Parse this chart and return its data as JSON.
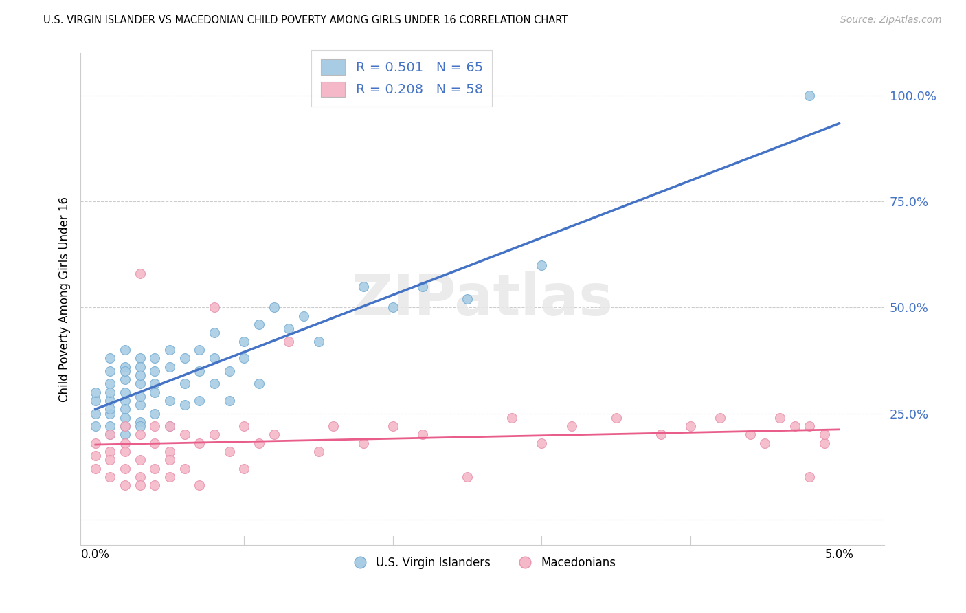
{
  "title": "U.S. VIRGIN ISLANDER VS MACEDONIAN CHILD POVERTY AMONG GIRLS UNDER 16 CORRELATION CHART",
  "source": "Source: ZipAtlas.com",
  "ylabel": "Child Poverty Among Girls Under 16",
  "blue_R": 0.501,
  "blue_N": 65,
  "pink_R": 0.208,
  "pink_N": 58,
  "blue_color": "#a8cce4",
  "pink_color": "#f4b8c8",
  "blue_line_color": "#4472c4",
  "pink_line_color": "#e85d8a",
  "blue_edge_color": "#7aafd4",
  "pink_edge_color": "#e895b0",
  "ytick_color": "#4472c4",
  "watermark": "ZIPatlas",
  "blue_scatter_x": [
    0.0,
    0.0,
    0.0,
    0.0,
    0.001,
    0.001,
    0.001,
    0.001,
    0.001,
    0.001,
    0.001,
    0.001,
    0.001,
    0.002,
    0.002,
    0.002,
    0.002,
    0.002,
    0.002,
    0.002,
    0.002,
    0.002,
    0.002,
    0.003,
    0.003,
    0.003,
    0.003,
    0.003,
    0.003,
    0.003,
    0.003,
    0.004,
    0.004,
    0.004,
    0.004,
    0.004,
    0.005,
    0.005,
    0.005,
    0.005,
    0.006,
    0.006,
    0.006,
    0.007,
    0.007,
    0.007,
    0.008,
    0.008,
    0.008,
    0.009,
    0.009,
    0.01,
    0.01,
    0.011,
    0.011,
    0.012,
    0.013,
    0.014,
    0.015,
    0.018,
    0.02,
    0.022,
    0.025,
    0.03,
    0.048
  ],
  "blue_scatter_y": [
    0.28,
    0.25,
    0.3,
    0.22,
    0.32,
    0.28,
    0.35,
    0.2,
    0.25,
    0.38,
    0.22,
    0.26,
    0.3,
    0.33,
    0.28,
    0.36,
    0.22,
    0.4,
    0.26,
    0.24,
    0.3,
    0.35,
    0.2,
    0.32,
    0.27,
    0.38,
    0.23,
    0.34,
    0.29,
    0.36,
    0.22,
    0.35,
    0.3,
    0.38,
    0.25,
    0.32,
    0.36,
    0.28,
    0.4,
    0.22,
    0.38,
    0.32,
    0.27,
    0.4,
    0.35,
    0.28,
    0.44,
    0.32,
    0.38,
    0.35,
    0.28,
    0.42,
    0.38,
    0.46,
    0.32,
    0.5,
    0.45,
    0.48,
    0.42,
    0.55,
    0.5,
    0.55,
    0.52,
    0.6,
    1.0
  ],
  "pink_scatter_x": [
    0.0,
    0.0,
    0.0,
    0.001,
    0.001,
    0.001,
    0.001,
    0.002,
    0.002,
    0.002,
    0.002,
    0.002,
    0.003,
    0.003,
    0.003,
    0.003,
    0.003,
    0.004,
    0.004,
    0.004,
    0.004,
    0.005,
    0.005,
    0.005,
    0.005,
    0.006,
    0.006,
    0.007,
    0.007,
    0.008,
    0.008,
    0.009,
    0.01,
    0.01,
    0.011,
    0.012,
    0.013,
    0.015,
    0.016,
    0.018,
    0.02,
    0.022,
    0.025,
    0.028,
    0.03,
    0.032,
    0.035,
    0.038,
    0.04,
    0.042,
    0.044,
    0.045,
    0.046,
    0.047,
    0.048,
    0.048,
    0.049,
    0.049
  ],
  "pink_scatter_y": [
    0.15,
    0.12,
    0.18,
    0.16,
    0.1,
    0.2,
    0.14,
    0.18,
    0.12,
    0.22,
    0.08,
    0.16,
    0.2,
    0.1,
    0.58,
    0.14,
    0.08,
    0.22,
    0.12,
    0.18,
    0.08,
    0.16,
    0.22,
    0.1,
    0.14,
    0.2,
    0.12,
    0.18,
    0.08,
    0.2,
    0.5,
    0.16,
    0.22,
    0.12,
    0.18,
    0.2,
    0.42,
    0.16,
    0.22,
    0.18,
    0.22,
    0.2,
    0.1,
    0.24,
    0.18,
    0.22,
    0.24,
    0.2,
    0.22,
    0.24,
    0.2,
    0.18,
    0.24,
    0.22,
    0.1,
    0.22,
    0.18,
    0.2
  ]
}
